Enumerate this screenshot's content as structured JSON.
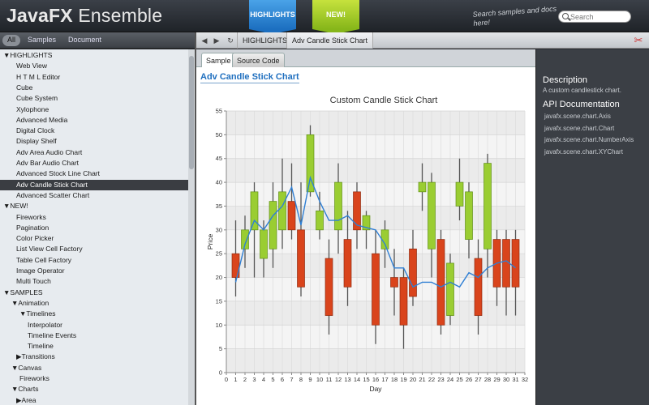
{
  "header": {
    "title_bold": "JavaFX",
    "title_rest": " Ensemble",
    "tag_highlights": "HIGHLIGHTS",
    "tag_new": "NEW!",
    "hint": "Search samples and docs here!",
    "search_placeholder": "Search"
  },
  "filters": {
    "all": "All",
    "samples": "Samples",
    "document": "Document"
  },
  "nav": {
    "back": "◀",
    "forward": "▶",
    "refresh": "↻",
    "crumbs": [
      "HIGHLIGHTS",
      "Adv Candle Stick Chart"
    ]
  },
  "sidebar": {
    "items": [
      "▼HIGHLIGHTS",
      "Web View",
      "H T M L Editor",
      "Cube",
      "Cube System",
      "Xylophone",
      "Advanced Media",
      "Digital Clock",
      "Display Shelf",
      "Adv Area Audio Chart",
      "Adv Bar Audio Chart",
      "Advanced Stock Line Chart",
      "Adv Candle Stick Chart",
      "Advanced Scatter Chart",
      "▼NEW!",
      "Fireworks",
      "Pagination",
      "Color Picker",
      "List View Cell Factory",
      "Table Cell Factory",
      "Image Operator",
      "Multi Touch",
      "▼SAMPLES",
      "▼Animation",
      "▼Timelines",
      "Interpolator",
      "Timeline Events",
      "Timeline",
      "▶Transitions",
      "▼Canvas",
      "Fireworks",
      "▼Charts",
      "▶Area"
    ],
    "selected_index": 12
  },
  "tabs": {
    "sample": "Sample",
    "source": "Source Code"
  },
  "sample_title": "Adv Candle Stick Chart",
  "right_panel": {
    "desc_heading": "Description",
    "desc_text": "A custom candlestick chart.",
    "api_heading": "API Documentation",
    "api_links": [
      "javafx.scene.chart.Axis",
      "javafx.scene.chart.Chart",
      "javafx.scene.chart.NumberAxis",
      "javafx.scene.chart.XYChart"
    ]
  },
  "chart_data": {
    "type": "candlestick",
    "title": "Custom Candle Stick Chart",
    "xlabel": "Day",
    "ylabel": "Price",
    "xlim": [
      0,
      32
    ],
    "ylim": [
      0,
      55
    ],
    "xticks": [
      0,
      1,
      2,
      3,
      4,
      5,
      6,
      7,
      8,
      9,
      10,
      11,
      12,
      13,
      14,
      15,
      16,
      17,
      18,
      19,
      20,
      21,
      22,
      23,
      24,
      25,
      26,
      27,
      28,
      29,
      30,
      31,
      32
    ],
    "yticks": [
      0,
      5,
      10,
      15,
      20,
      25,
      30,
      35,
      40,
      45,
      50,
      55
    ],
    "colors": {
      "up": "#9acd32",
      "down": "#d9441c",
      "average": "#2f7fd4"
    },
    "candles": [
      {
        "day": 1,
        "open": 25,
        "close": 20,
        "high": 32,
        "low": 16
      },
      {
        "day": 2,
        "open": 26,
        "close": 30,
        "high": 33,
        "low": 22
      },
      {
        "day": 3,
        "open": 30,
        "close": 38,
        "high": 40,
        "low": 20
      },
      {
        "day": 4,
        "open": 24,
        "close": 30,
        "high": 32,
        "low": 20
      },
      {
        "day": 5,
        "open": 26,
        "close": 36,
        "high": 40,
        "low": 22
      },
      {
        "day": 6,
        "open": 30,
        "close": 38,
        "high": 45,
        "low": 26
      },
      {
        "day": 7,
        "open": 36,
        "close": 30,
        "high": 44,
        "low": 28
      },
      {
        "day": 8,
        "open": 30,
        "close": 18,
        "high": 40,
        "low": 16
      },
      {
        "day": 9,
        "open": 38,
        "close": 50,
        "high": 52,
        "low": 37
      },
      {
        "day": 10,
        "open": 30,
        "close": 34,
        "high": 38,
        "low": 28
      },
      {
        "day": 11,
        "open": 24,
        "close": 12,
        "high": 28,
        "low": 8
      },
      {
        "day": 12,
        "open": 30,
        "close": 40,
        "high": 44,
        "low": 25
      },
      {
        "day": 13,
        "open": 28,
        "close": 18,
        "high": 34,
        "low": 14
      },
      {
        "day": 14,
        "open": 38,
        "close": 30,
        "high": 40,
        "low": 26
      },
      {
        "day": 15,
        "open": 30,
        "close": 33,
        "high": 34,
        "low": 26
      },
      {
        "day": 16,
        "open": 25,
        "close": 10,
        "high": 30,
        "low": 6
      },
      {
        "day": 17,
        "open": 26,
        "close": 30,
        "high": 32,
        "low": 22
      },
      {
        "day": 18,
        "open": 20,
        "close": 18,
        "high": 26,
        "low": 12
      },
      {
        "day": 19,
        "open": 20,
        "close": 10,
        "high": 22,
        "low": 5
      },
      {
        "day": 20,
        "open": 26,
        "close": 16,
        "high": 30,
        "low": 14
      },
      {
        "day": 21,
        "open": 38,
        "close": 40,
        "high": 44,
        "low": 34
      },
      {
        "day": 22,
        "open": 26,
        "close": 40,
        "high": 42,
        "low": 20
      },
      {
        "day": 23,
        "open": 28,
        "close": 10,
        "high": 30,
        "low": 8
      },
      {
        "day": 24,
        "open": 12,
        "close": 23,
        "high": 25,
        "low": 10
      },
      {
        "day": 25,
        "open": 35,
        "close": 40,
        "high": 45,
        "low": 32
      },
      {
        "day": 26,
        "open": 28,
        "close": 38,
        "high": 40,
        "low": 24
      },
      {
        "day": 27,
        "open": 24,
        "close": 12,
        "high": 28,
        "low": 8
      },
      {
        "day": 28,
        "open": 26,
        "close": 44,
        "high": 46,
        "low": 20
      },
      {
        "day": 29,
        "open": 28,
        "close": 18,
        "high": 30,
        "low": 14
      },
      {
        "day": 30,
        "open": 28,
        "close": 18,
        "high": 30,
        "low": 12
      },
      {
        "day": 31,
        "open": 28,
        "close": 18,
        "high": 30,
        "low": 12
      }
    ],
    "average": [
      {
        "day": 1,
        "value": 19
      },
      {
        "day": 2,
        "value": 27
      },
      {
        "day": 3,
        "value": 32
      },
      {
        "day": 4,
        "value": 30
      },
      {
        "day": 5,
        "value": 33
      },
      {
        "day": 6,
        "value": 35
      },
      {
        "day": 7,
        "value": 39
      },
      {
        "day": 8,
        "value": 31
      },
      {
        "day": 9,
        "value": 41
      },
      {
        "day": 10,
        "value": 36
      },
      {
        "day": 11,
        "value": 32
      },
      {
        "day": 12,
        "value": 32
      },
      {
        "day": 13,
        "value": 33
      },
      {
        "day": 14,
        "value": 31
      },
      {
        "day": 15,
        "value": 30.5
      },
      {
        "day": 16,
        "value": 30
      },
      {
        "day": 17,
        "value": 27
      },
      {
        "day": 18,
        "value": 22
      },
      {
        "day": 19,
        "value": 22
      },
      {
        "day": 20,
        "value": 18
      },
      {
        "day": 21,
        "value": 19
      },
      {
        "day": 22,
        "value": 19
      },
      {
        "day": 23,
        "value": 18
      },
      {
        "day": 24,
        "value": 19
      },
      {
        "day": 25,
        "value": 18
      },
      {
        "day": 26,
        "value": 21
      },
      {
        "day": 27,
        "value": 20
      },
      {
        "day": 28,
        "value": 22
      },
      {
        "day": 29,
        "value": 23
      },
      {
        "day": 30,
        "value": 23.5
      },
      {
        "day": 31,
        "value": 22
      }
    ]
  }
}
